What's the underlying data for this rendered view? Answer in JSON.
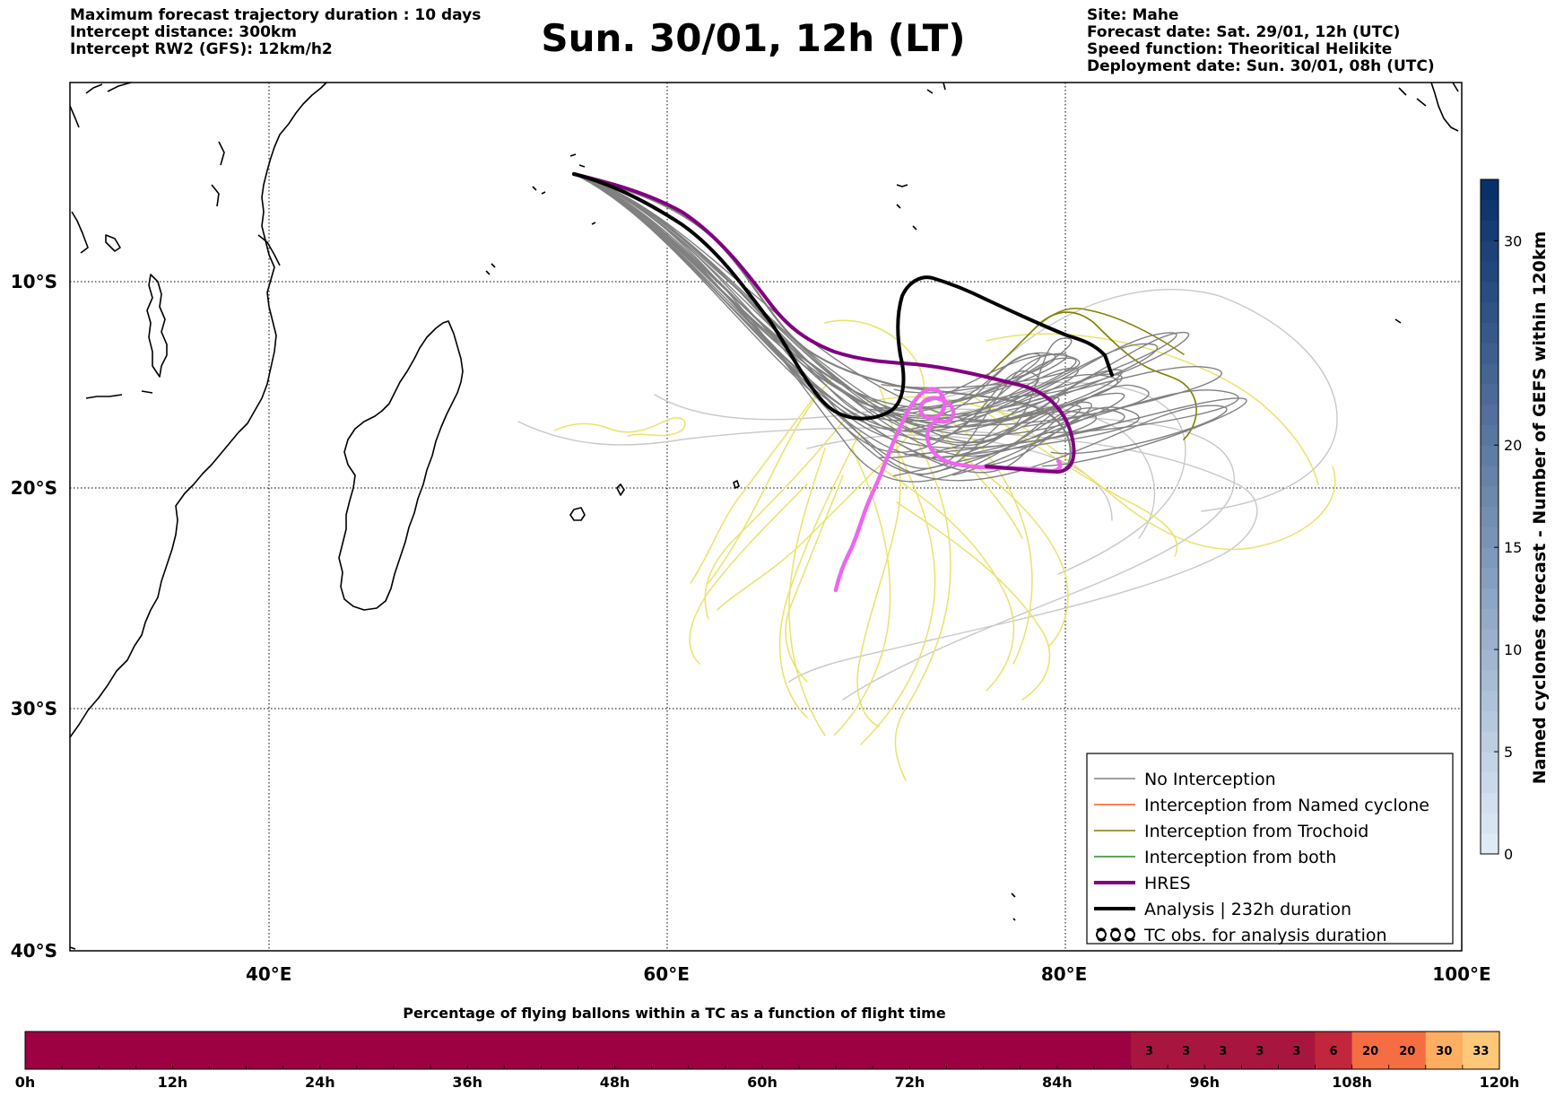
{
  "header": {
    "left_lines": [
      "Maximum forecast trajectory duration : 10 days",
      "Intercept distance: 300km",
      "Intercept RW2 (GFS):  12km/h2"
    ],
    "title": "Sun. 30/01, 12h (LT)",
    "right_lines": [
      "Site: Mahe",
      "Forecast date: Sat. 29/01, 12h (UTC)",
      "Speed function: Theoritical Helikite",
      "Deployment date: Sun. 30/01, 08h (UTC)"
    ]
  },
  "map": {
    "lon_range": [
      30,
      100
    ],
    "lat_range": [
      -40,
      0
    ],
    "lon_ticks": [
      "40°E",
      "60°E",
      "80°E",
      "100°E"
    ],
    "lon_tick_values": [
      40,
      60,
      80,
      100
    ],
    "lat_ticks": [
      "10°S",
      "20°S",
      "30°S",
      "40°S"
    ],
    "lat_tick_values": [
      -10,
      -20,
      -30,
      -40
    ],
    "launch_site": "Mahe"
  },
  "legend": {
    "items": [
      {
        "label": "No Interception",
        "color": "#808080",
        "icon": "thin-line"
      },
      {
        "label": "Interception from Named cyclone",
        "color": "#ff5a1e",
        "icon": "thin-line"
      },
      {
        "label": "Interception from Trochoid",
        "color": "#808000",
        "icon": "thin-line"
      },
      {
        "label": "Interception from both",
        "color": "#228b22",
        "icon": "thin-line"
      },
      {
        "label": "HRES",
        "color": "#800080",
        "icon": "thick-line"
      },
      {
        "label": "Analysis | 232h duration",
        "color": "#000000",
        "icon": "thick-line"
      },
      {
        "label": "TC obs. for analysis duration",
        "color": "#000000",
        "icon": "cyclone-symbols-icon"
      }
    ]
  },
  "colorbar_right": {
    "label": "Named cyclones forecast - Number of GEFS within 120km",
    "tick_labels": [
      "0",
      "5",
      "10",
      "15",
      "20",
      "30"
    ],
    "tick_values": [
      0,
      5,
      10,
      15,
      20,
      30
    ],
    "range": [
      0,
      33
    ]
  },
  "time_bar": {
    "title": "Percentage of flying ballons within a TC as a function of flight time",
    "tick_labels": [
      "0h",
      "12h",
      "24h",
      "36h",
      "48h",
      "60h",
      "72h",
      "84h",
      "96h",
      "108h",
      "120h"
    ],
    "hours_per_cell": 3,
    "total_hours": 120,
    "values": [
      0,
      0,
      0,
      0,
      0,
      0,
      0,
      0,
      0,
      0,
      0,
      0,
      0,
      0,
      0,
      0,
      0,
      0,
      0,
      0,
      0,
      0,
      0,
      0,
      0,
      0,
      0,
      0,
      0,
      0,
      3,
      3,
      3,
      3,
      3,
      6,
      20,
      20,
      30,
      33
    ],
    "value_labels": [
      "",
      "",
      "",
      "",
      "",
      "",
      "",
      "",
      "",
      "",
      "",
      "",
      "",
      "",
      "",
      "",
      "",
      "",
      "",
      "",
      "",
      "",
      "",
      "",
      "",
      "",
      "",
      "",
      "",
      "",
      "3",
      "3",
      "3",
      "3",
      "3",
      "6",
      "20",
      "20",
      "30",
      "33"
    ]
  },
  "colors": {
    "no_interception": "#808080",
    "ensemble_yellow": "#e8e36a",
    "light_grey": "#c8c8c8",
    "hres": "#800080",
    "analysis": "#000000",
    "observed_track": "#ee66ee",
    "trochoid": "#808000"
  }
}
